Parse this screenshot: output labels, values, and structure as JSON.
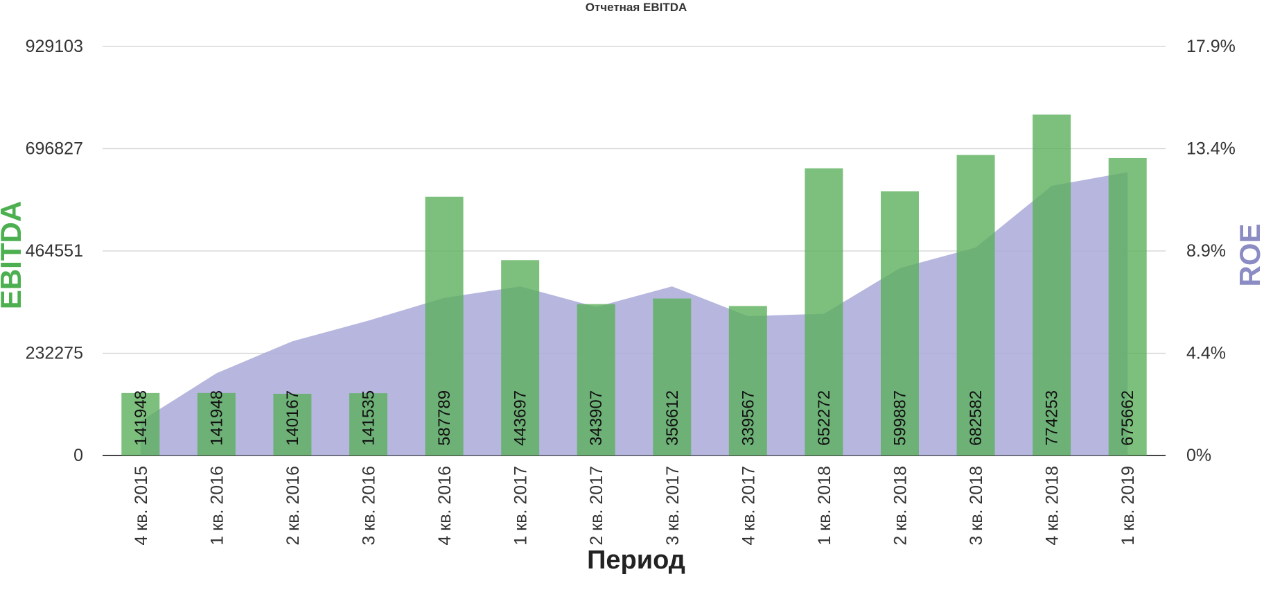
{
  "chart_data": {
    "type": "bar",
    "title": "Отчетная EBITDA",
    "xlabel": "Период",
    "ylabel": "EBITDA",
    "y2label": "ROE",
    "categories": [
      "4 кв. 2015",
      "1 кв. 2016",
      "2 кв. 2016",
      "3 кв. 2016",
      "4 кв. 2016",
      "1 кв. 2017",
      "2 кв. 2017",
      "3 кв. 2017",
      "4 кв. 2017",
      "1 кв. 2018",
      "2 кв. 2018",
      "3 кв. 2018",
      "4 кв. 2018",
      "1 кв. 2019"
    ],
    "series": [
      {
        "type": "bar",
        "axis": "left",
        "color": "#5cb05c",
        "values": [
          141948,
          141948,
          140167,
          141535,
          587789,
          443697,
          343907,
          356612,
          339567,
          652272,
          599887,
          682582,
          774253,
          675662
        ],
        "labels": [
          "141948",
          "141948",
          "140167",
          "141535",
          "587789",
          "443697",
          "343907",
          "356612",
          "339567",
          "652272",
          "599887",
          "682582",
          "774253",
          "675662"
        ]
      },
      {
        "type": "area",
        "axis": "right",
        "color": "#a9a9d8",
        "unit": "%",
        "values": [
          1.5,
          3.6,
          5.0,
          5.9,
          6.9,
          7.4,
          6.5,
          7.4,
          6.1,
          6.2,
          8.2,
          9.1,
          11.8,
          12.4
        ]
      }
    ],
    "y_ticks": [
      "929103",
      "696827",
      "464551",
      "232275",
      "0"
    ],
    "y2_ticks": [
      "17.9%",
      "13.4%",
      "8.9%",
      "4.4%",
      "0%"
    ],
    "ylim": [
      0,
      929103
    ],
    "y2lim": [
      0,
      17.9
    ],
    "grid": true,
    "colors": {
      "ebitda_axis": "#4caf50",
      "roe_axis": "#8c8cc4"
    }
  }
}
